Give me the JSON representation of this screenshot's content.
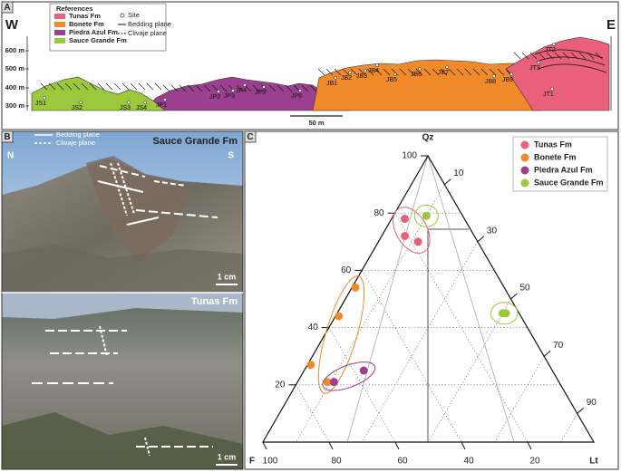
{
  "panel_a": {
    "label": "A",
    "legend": {
      "title": "References",
      "formations": [
        {
          "name": "Tunas Fm",
          "color": "#e8607a"
        },
        {
          "name": "Bonete Fm",
          "color": "#f08a2a"
        },
        {
          "name": "Piedra Azul Fm",
          "color": "#9b3f8f"
        },
        {
          "name": "Sauce Grande Fm",
          "color": "#9bc83c"
        }
      ],
      "site": "Site",
      "bedding": "Bedding plane",
      "cleavage": "Clivaje plane"
    },
    "west": "W",
    "east": "E",
    "elevations": [
      "600 m",
      "500 m",
      "400 m",
      "300 m"
    ],
    "sites": [
      "JS1",
      "JS2",
      "JS3",
      "JS4",
      "JP1",
      "JP2",
      "JP3",
      "JP4",
      "JP5",
      "JP6",
      "JB1",
      "JB2",
      "JB3",
      "JB4",
      "JB5",
      "JB6",
      "JB7",
      "JB8",
      "JB9",
      "JT1",
      "JT2",
      "JT3"
    ],
    "scale": "50 m"
  },
  "panel_b": {
    "label": "B",
    "legend": {
      "bedding": "Bedding plane",
      "cleavage": "Clivaje plane"
    },
    "top_photo": {
      "title": "Sauce Grande Fm",
      "north": "N",
      "south": "S",
      "scale": "1 cm"
    },
    "bottom_photo": {
      "title": "Tunas Fm",
      "scale": "1 cm"
    }
  },
  "panel_c": {
    "label": "C"
  },
  "chart_data": {
    "type": "ternary",
    "top_label": "Qz",
    "left_label": "F",
    "right_label": "Lt",
    "qz_ticks": [
      20,
      40,
      60,
      80,
      100
    ],
    "lt_ticks": [
      10,
      30,
      50,
      70,
      90
    ],
    "f_ticks": [
      20,
      40,
      60,
      80,
      100
    ],
    "grid": true,
    "legend_position": "upper right",
    "series": [
      {
        "name": "Tunas Fm",
        "color": "#e8607a",
        "qz": [
          78,
          72,
          70
        ],
        "f": [
          18,
          21,
          18
        ],
        "lt": [
          4,
          7,
          12
        ]
      },
      {
        "name": "Bonete Fm",
        "color": "#f08a2a",
        "qz": [
          54,
          44,
          27,
          21
        ],
        "f": [
          45,
          55,
          72,
          70
        ],
        "lt": [
          1,
          1,
          1,
          9
        ]
      },
      {
        "name": "Piedra Azul Fm",
        "color": "#9b3f8f",
        "qz": [
          21,
          25
        ],
        "f": [
          68,
          57
        ],
        "lt": [
          11,
          18
        ]
      },
      {
        "name": "Sauce Grande Fm",
        "color": "#9bc83c",
        "qz": [
          79,
          45,
          45
        ],
        "f": [
          11,
          4,
          5
        ],
        "lt": [
          10,
          51,
          50
        ]
      }
    ]
  }
}
